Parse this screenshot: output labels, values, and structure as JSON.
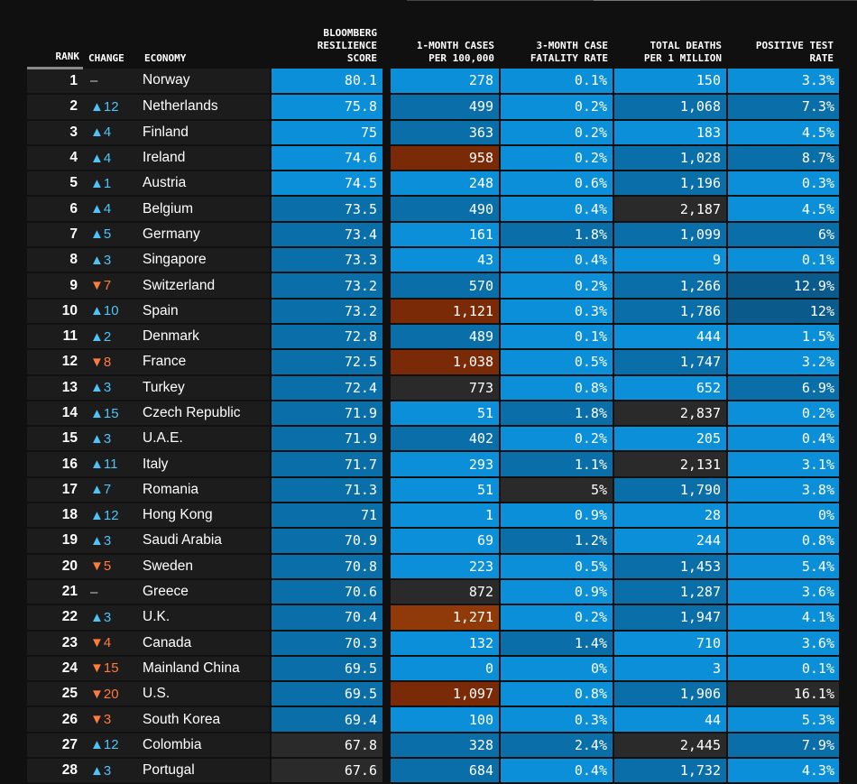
{
  "headers": {
    "rank": "RANK",
    "change": "CHANGE",
    "economy": "ECONOMY",
    "score": [
      "BLOOMBERG",
      "RESILIENCE",
      "SCORE"
    ],
    "cases": [
      "1-MONTH CASES",
      "PER 100,000"
    ],
    "cfr": [
      "3-MONTH CASE",
      "FATALITY RATE"
    ],
    "deaths": [
      "TOTAL DEATHS",
      "PER 1 MILLION"
    ],
    "ptr": [
      "POSITIVE TEST",
      "RATE"
    ]
  },
  "colors": {
    "blue_light": "#0b8fd8",
    "blue_mid": "#0a6ea8",
    "blue_dark": "#0a5a8c",
    "neutral": "#2a2a2a",
    "red": "#7a2a06",
    "up": "#4fc3f7",
    "down": "#ff7a3d"
  },
  "rows": [
    {
      "rank": "1",
      "dir": "flat",
      "change": "–",
      "economy": "Norway",
      "score": "80.1",
      "sc": "c1",
      "cases": "278",
      "cc": "c1",
      "cfr": "0.1%",
      "fc": "c1",
      "deaths": "150",
      "dc": "c1",
      "ptr": "3.3%",
      "pc": "c1"
    },
    {
      "rank": "2",
      "dir": "up",
      "change": "▲12",
      "economy": "Netherlands",
      "score": "75.8",
      "sc": "c1",
      "cases": "499",
      "cc": "c2",
      "cfr": "0.2%",
      "fc": "c1",
      "deaths": "1,068",
      "dc": "c2",
      "ptr": "7.3%",
      "pc": "c2"
    },
    {
      "rank": "3",
      "dir": "up",
      "change": "▲4",
      "economy": "Finland",
      "score": "75",
      "sc": "c1",
      "cases": "363",
      "cc": "c2",
      "cfr": "0.2%",
      "fc": "c1",
      "deaths": "183",
      "dc": "c1",
      "ptr": "4.5%",
      "pc": "c1"
    },
    {
      "rank": "4",
      "dir": "up",
      "change": "▲4",
      "economy": "Ireland",
      "score": "74.6",
      "sc": "c1",
      "cases": "958",
      "cc": "cr",
      "cfr": "0.2%",
      "fc": "c1",
      "deaths": "1,028",
      "dc": "c2",
      "ptr": "8.7%",
      "pc": "c2"
    },
    {
      "rank": "5",
      "dir": "up",
      "change": "▲1",
      "economy": "Austria",
      "score": "74.5",
      "sc": "c1",
      "cases": "248",
      "cc": "c1",
      "cfr": "0.6%",
      "fc": "c1",
      "deaths": "1,196",
      "dc": "c2",
      "ptr": "0.3%",
      "pc": "c1"
    },
    {
      "rank": "6",
      "dir": "up",
      "change": "▲4",
      "economy": "Belgium",
      "score": "73.5",
      "sc": "c2",
      "cases": "490",
      "cc": "c2",
      "cfr": "0.4%",
      "fc": "c1",
      "deaths": "2,187",
      "dc": "cd",
      "ptr": "4.5%",
      "pc": "c1"
    },
    {
      "rank": "7",
      "dir": "up",
      "change": "▲5",
      "economy": "Germany",
      "score": "73.4",
      "sc": "c2",
      "cases": "161",
      "cc": "c1",
      "cfr": "1.8%",
      "fc": "c2",
      "deaths": "1,099",
      "dc": "c2",
      "ptr": "6%",
      "pc": "c2"
    },
    {
      "rank": "8",
      "dir": "up",
      "change": "▲3",
      "economy": "Singapore",
      "score": "73.3",
      "sc": "c2",
      "cases": "43",
      "cc": "c1",
      "cfr": "0.4%",
      "fc": "c1",
      "deaths": "9",
      "dc": "c1",
      "ptr": "0.1%",
      "pc": "c1"
    },
    {
      "rank": "9",
      "dir": "down",
      "change": "▼7",
      "economy": "Switzerland",
      "score": "73.2",
      "sc": "c2",
      "cases": "570",
      "cc": "c2",
      "cfr": "0.2%",
      "fc": "c1",
      "deaths": "1,266",
      "dc": "c2",
      "ptr": "12.9%",
      "pc": "c3"
    },
    {
      "rank": "10",
      "dir": "up",
      "change": "▲10",
      "economy": "Spain",
      "score": "73.2",
      "sc": "c2",
      "cases": "1,121",
      "cc": "cr",
      "cfr": "0.3%",
      "fc": "c1",
      "deaths": "1,786",
      "dc": "c2",
      "ptr": "12%",
      "pc": "c3"
    },
    {
      "rank": "11",
      "dir": "up",
      "change": "▲2",
      "economy": "Denmark",
      "score": "72.8",
      "sc": "c2",
      "cases": "489",
      "cc": "c2",
      "cfr": "0.1%",
      "fc": "c1",
      "deaths": "444",
      "dc": "c1",
      "ptr": "1.5%",
      "pc": "c1"
    },
    {
      "rank": "12",
      "dir": "down",
      "change": "▼8",
      "economy": "France",
      "score": "72.5",
      "sc": "c2",
      "cases": "1,038",
      "cc": "cr",
      "cfr": "0.5%",
      "fc": "c1",
      "deaths": "1,747",
      "dc": "c2",
      "ptr": "3.2%",
      "pc": "c1"
    },
    {
      "rank": "13",
      "dir": "up",
      "change": "▲3",
      "economy": "Turkey",
      "score": "72.4",
      "sc": "c2",
      "cases": "773",
      "cc": "cd",
      "cfr": "0.8%",
      "fc": "c1",
      "deaths": "652",
      "dc": "c1",
      "ptr": "6.9%",
      "pc": "c2"
    },
    {
      "rank": "14",
      "dir": "up",
      "change": "▲15",
      "economy": "Czech Republic",
      "score": "71.9",
      "sc": "c2",
      "cases": "51",
      "cc": "c1",
      "cfr": "1.8%",
      "fc": "c2",
      "deaths": "2,837",
      "dc": "cd",
      "ptr": "0.2%",
      "pc": "c1"
    },
    {
      "rank": "15",
      "dir": "up",
      "change": "▲3",
      "economy": "U.A.E.",
      "score": "71.9",
      "sc": "c2",
      "cases": "402",
      "cc": "c2",
      "cfr": "0.2%",
      "fc": "c1",
      "deaths": "205",
      "dc": "c1",
      "ptr": "0.4%",
      "pc": "c1"
    },
    {
      "rank": "16",
      "dir": "up",
      "change": "▲11",
      "economy": "Italy",
      "score": "71.7",
      "sc": "c2",
      "cases": "293",
      "cc": "c1",
      "cfr": "1.1%",
      "fc": "c2",
      "deaths": "2,131",
      "dc": "cd",
      "ptr": "3.1%",
      "pc": "c1"
    },
    {
      "rank": "17",
      "dir": "up",
      "change": "▲7",
      "economy": "Romania",
      "score": "71.3",
      "sc": "c2",
      "cases": "51",
      "cc": "c1",
      "cfr": "5%",
      "fc": "cd",
      "deaths": "1,790",
      "dc": "c2",
      "ptr": "3.8%",
      "pc": "c1"
    },
    {
      "rank": "18",
      "dir": "up",
      "change": "▲12",
      "economy": "Hong Kong",
      "score": "71",
      "sc": "c2",
      "cases": "1",
      "cc": "c1",
      "cfr": "0.9%",
      "fc": "c1",
      "deaths": "28",
      "dc": "c1",
      "ptr": "0%",
      "pc": "c1"
    },
    {
      "rank": "19",
      "dir": "up",
      "change": "▲3",
      "economy": "Saudi Arabia",
      "score": "70.9",
      "sc": "c2",
      "cases": "69",
      "cc": "c1",
      "cfr": "1.2%",
      "fc": "c2",
      "deaths": "244",
      "dc": "c1",
      "ptr": "0.8%",
      "pc": "c1"
    },
    {
      "rank": "20",
      "dir": "down",
      "change": "▼5",
      "economy": "Sweden",
      "score": "70.8",
      "sc": "c2",
      "cases": "223",
      "cc": "c1",
      "cfr": "0.5%",
      "fc": "c1",
      "deaths": "1,453",
      "dc": "c2",
      "ptr": "5.4%",
      "pc": "c1"
    },
    {
      "rank": "21",
      "dir": "flat",
      "change": "–",
      "economy": "Greece",
      "score": "70.6",
      "sc": "c2",
      "cases": "872",
      "cc": "cd",
      "cfr": "0.9%",
      "fc": "c1",
      "deaths": "1,287",
      "dc": "c2",
      "ptr": "3.6%",
      "pc": "c1"
    },
    {
      "rank": "22",
      "dir": "up",
      "change": "▲3",
      "economy": "U.K.",
      "score": "70.4",
      "sc": "c2",
      "cases": "1,271",
      "cc": "cr2",
      "cfr": "0.2%",
      "fc": "c1",
      "deaths": "1,947",
      "dc": "c2",
      "ptr": "4.1%",
      "pc": "c1"
    },
    {
      "rank": "23",
      "dir": "down",
      "change": "▼4",
      "economy": "Canada",
      "score": "70.3",
      "sc": "c2",
      "cases": "132",
      "cc": "c1",
      "cfr": "1.4%",
      "fc": "c2",
      "deaths": "710",
      "dc": "c1",
      "ptr": "3.6%",
      "pc": "c1"
    },
    {
      "rank": "24",
      "dir": "down",
      "change": "▼15",
      "economy": "Mainland China",
      "score": "69.5",
      "sc": "c2",
      "cases": "0",
      "cc": "c1",
      "cfr": "0%",
      "fc": "c1",
      "deaths": "3",
      "dc": "c1",
      "ptr": "0.1%",
      "pc": "c1"
    },
    {
      "rank": "25",
      "dir": "down",
      "change": "▼20",
      "economy": "U.S.",
      "score": "69.5",
      "sc": "c2",
      "cases": "1,097",
      "cc": "cr",
      "cfr": "0.8%",
      "fc": "c1",
      "deaths": "1,906",
      "dc": "c2",
      "ptr": "16.1%",
      "pc": "cd"
    },
    {
      "rank": "26",
      "dir": "down",
      "change": "▼3",
      "economy": "South Korea",
      "score": "69.4",
      "sc": "c2",
      "cases": "100",
      "cc": "c1",
      "cfr": "0.3%",
      "fc": "c1",
      "deaths": "44",
      "dc": "c1",
      "ptr": "5.3%",
      "pc": "c1"
    },
    {
      "rank": "27",
      "dir": "up",
      "change": "▲12",
      "economy": "Colombia",
      "score": "67.8",
      "sc": "cd",
      "cases": "328",
      "cc": "c2",
      "cfr": "2.4%",
      "fc": "c2",
      "deaths": "2,445",
      "dc": "cd",
      "ptr": "7.9%",
      "pc": "c2"
    },
    {
      "rank": "28",
      "dir": "up",
      "change": "▲3",
      "economy": "Portugal",
      "score": "67.6",
      "sc": "cd",
      "cases": "684",
      "cc": "c2",
      "cfr": "0.4%",
      "fc": "c1",
      "deaths": "1,732",
      "dc": "c2",
      "ptr": "4.3%",
      "pc": "c1"
    }
  ]
}
